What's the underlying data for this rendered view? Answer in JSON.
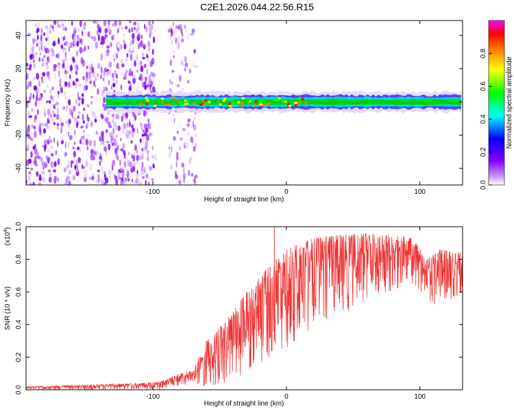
{
  "title": "C2E1.2026.044.22.56.R15",
  "chart_data": [
    {
      "type": "heatmap",
      "name": "spectrogram",
      "xlabel": "Height of straight line (km)",
      "ylabel": "Frequency (Hz)",
      "xlim": [
        -195,
        132
      ],
      "ylim": [
        -50,
        49
      ],
      "xticks": [
        -100,
        0,
        100
      ],
      "xtick_labels": [
        "-100",
        "0",
        "100"
      ],
      "yticks": [
        -40,
        -20,
        0,
        20,
        40
      ],
      "ytick_labels": [
        "-40",
        "-20",
        "0",
        "20",
        "40"
      ],
      "colorbar": {
        "label": "Normalized spectral amplitude",
        "range": [
          0,
          1
        ],
        "ticks": [
          0.0,
          0.2,
          0.4,
          0.6,
          0.8
        ],
        "tick_labels": [
          "0.0",
          "0.2",
          "0.4",
          "0.6",
          "0.8"
        ],
        "colors": [
          "#ffffff",
          "#cc99ff",
          "#8000ff",
          "#0000ff",
          "#00ffff",
          "#00ff00",
          "#ffff00",
          "#ff8000",
          "#ff0000",
          "#ff00ff"
        ]
      },
      "features": {
        "noise_region_x": [
          -195,
          -98
        ],
        "noise_strip_x": [
          -88,
          -67
        ],
        "signal_band_x": [
          -135,
          132
        ],
        "signal_center_hz": 0,
        "signal_halfwidth_hz": 3
      }
    },
    {
      "type": "line",
      "name": "snr",
      "xlabel": "Height of straight line (km)",
      "ylabel": "SNR (10 * v/v)",
      "scale_label": "(x10",
      "scale_exponent": "4",
      "scale_close": ")",
      "xlim": [
        -195,
        132
      ],
      "ylim": [
        0,
        1.0
      ],
      "xticks": [
        -100,
        0,
        100
      ],
      "xtick_labels": [
        "-100",
        "0",
        "100"
      ],
      "yticks": [
        0.0,
        0.2,
        0.4,
        0.6,
        0.8,
        1.0
      ],
      "ytick_labels": [
        "0.0",
        "0.2",
        "0.4",
        "0.6",
        "0.8",
        "1.0"
      ],
      "color": "#ee3333",
      "envelope": {
        "x": [
          -195,
          -150,
          -110,
          -95,
          -80,
          -70,
          -60,
          -50,
          -40,
          -30,
          -20,
          -10,
          0,
          10,
          20,
          40,
          60,
          80,
          95,
          105,
          115,
          132
        ],
        "upper": [
          0.02,
          0.03,
          0.04,
          0.05,
          0.1,
          0.12,
          0.3,
          0.38,
          0.48,
          0.6,
          0.7,
          0.78,
          0.86,
          0.9,
          0.93,
          0.95,
          0.96,
          0.95,
          0.93,
          0.8,
          0.86,
          0.84
        ],
        "lower": [
          0.0,
          0.0,
          0.0,
          0.0,
          0.02,
          0.02,
          0.02,
          0.03,
          0.05,
          0.1,
          0.15,
          0.2,
          0.25,
          0.3,
          0.4,
          0.45,
          0.55,
          0.6,
          0.65,
          0.55,
          0.5,
          0.6
        ]
      },
      "spikes": [
        {
          "x": -9,
          "y": 1.0
        }
      ]
    }
  ]
}
